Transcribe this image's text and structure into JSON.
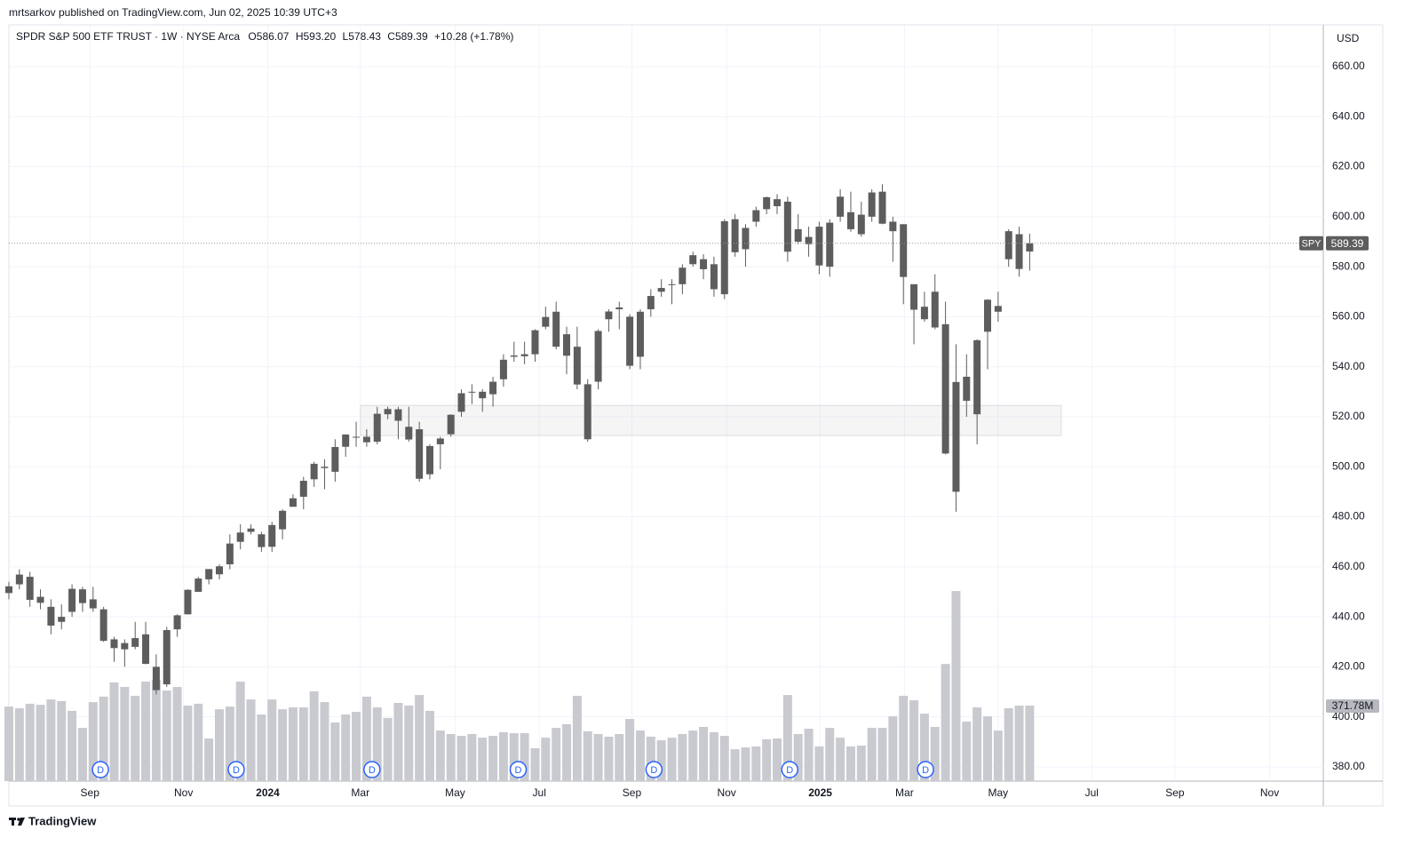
{
  "published": "mrtsarkov published on TradingView.com, Jun 02, 2025 10:39 UTC+3",
  "brand": "TradingView",
  "chart_data": {
    "type": "candlestick",
    "title": "SPDR S&P 500 ETF TRUST · 1W · NYSE Arca",
    "symbol": "SPY",
    "currency": "USD",
    "legend": {
      "o": "O",
      "h": "H",
      "l": "L",
      "c": "C",
      "high_label": "593.20",
      "change": "+10.28 (+1.78%)"
    },
    "candle_color": "#5d5d5d",
    "volume_color": "#c9cad0",
    "ohlc": [
      [
        449.5,
        454,
        447,
        452.2
      ],
      [
        453,
        459,
        451,
        456.9
      ],
      [
        456,
        458,
        444,
        446.8
      ],
      [
        448,
        451,
        443,
        445.6
      ],
      [
        444,
        447,
        433,
        436.5
      ],
      [
        438,
        445,
        435,
        440
      ],
      [
        442,
        453,
        440,
        451.2
      ],
      [
        451,
        452,
        442,
        445.5
      ],
      [
        447,
        452,
        442,
        443.4
      ],
      [
        443,
        444,
        430,
        430.4
      ],
      [
        431,
        432,
        422,
        427.5
      ],
      [
        427,
        431,
        420,
        429.5
      ],
      [
        428,
        438,
        427,
        431.5
      ],
      [
        433,
        438,
        421,
        421.2
      ],
      [
        420,
        425,
        409,
        410.7
      ],
      [
        413,
        436,
        412,
        434.7
      ],
      [
        435,
        441,
        432,
        440.6
      ],
      [
        441,
        451,
        441,
        450.8
      ],
      [
        450,
        456,
        450,
        455.3
      ],
      [
        455,
        459,
        453,
        459.1
      ],
      [
        457,
        461,
        455,
        460.2
      ],
      [
        461,
        473,
        459,
        469.3
      ],
      [
        470,
        477,
        467,
        473.7
      ],
      [
        474,
        477,
        473,
        475.3
      ],
      [
        473,
        474,
        466,
        467.9
      ],
      [
        468,
        478,
        466,
        476.7
      ],
      [
        475,
        483,
        471,
        482.4
      ],
      [
        484,
        489,
        484,
        487.4
      ],
      [
        488,
        496,
        483,
        494.4
      ],
      [
        495,
        502,
        492,
        501.2
      ],
      [
        500,
        503,
        491,
        499.5
      ],
      [
        498,
        511,
        494,
        507.9
      ],
      [
        508,
        513,
        504,
        512.9
      ],
      [
        512,
        518,
        508,
        511.7
      ],
      [
        512,
        515,
        508,
        509.8
      ],
      [
        510,
        524,
        509,
        521.2
      ],
      [
        521,
        524,
        519,
        523.1
      ],
      [
        523,
        524,
        511,
        518.4
      ],
      [
        516,
        524,
        510,
        510.9
      ],
      [
        515,
        518,
        494,
        495.2
      ],
      [
        497,
        509,
        495,
        508.3
      ],
      [
        509,
        512,
        499,
        511.3
      ],
      [
        513,
        521,
        512,
        520.8
      ],
      [
        522,
        531,
        520,
        529.4
      ],
      [
        530,
        533,
        525,
        530
      ],
      [
        530,
        531,
        522,
        527.4
      ],
      [
        529,
        536,
        524,
        534
      ],
      [
        535,
        545,
        532,
        542.8
      ],
      [
        544,
        550,
        542,
        544.5
      ],
      [
        545,
        550,
        541,
        544.2
      ],
      [
        545,
        555,
        542,
        554.6
      ],
      [
        556,
        564,
        555,
        559.9
      ],
      [
        562,
        566,
        547,
        548
      ],
      [
        553,
        556,
        537,
        544.4
      ],
      [
        548,
        556,
        531,
        532.9
      ],
      [
        511,
        535,
        510,
        533
      ],
      [
        534,
        555,
        531,
        554.3
      ],
      [
        559,
        563,
        554,
        562.1
      ],
      [
        563,
        566,
        555,
        563.7
      ],
      [
        560,
        561,
        539,
        540.4
      ],
      [
        544,
        563,
        539,
        562
      ],
      [
        563,
        571,
        560,
        568.3
      ],
      [
        570,
        575,
        568,
        571.5
      ],
      [
        573,
        575,
        565,
        572.9
      ],
      [
        573,
        581,
        569,
        579.6
      ],
      [
        581,
        586,
        580,
        584.6
      ],
      [
        583,
        585,
        575,
        579
      ],
      [
        581,
        584,
        568,
        571
      ],
      [
        569,
        599,
        567,
        598.2
      ],
      [
        599,
        601,
        584,
        585.8
      ],
      [
        587,
        597,
        580,
        595.5
      ],
      [
        598,
        604,
        596,
        602.6
      ],
      [
        603,
        608,
        601,
        607.8
      ],
      [
        607,
        609,
        601,
        604.2
      ],
      [
        606,
        608,
        582,
        586
      ],
      [
        590,
        601,
        589,
        595
      ],
      [
        589,
        596,
        584,
        591.9
      ],
      [
        596,
        598,
        577,
        580.5
      ],
      [
        580,
        599,
        576,
        597.6
      ],
      [
        600,
        611,
        598,
        608
      ],
      [
        595,
        610,
        594,
        601.8
      ],
      [
        593,
        606,
        592,
        600.8
      ],
      [
        600,
        611,
        598,
        609.7
      ],
      [
        610,
        613,
        597,
        597.2
      ],
      [
        598,
        600,
        582,
        594.2
      ],
      [
        597,
        597,
        565,
        575.9
      ],
      [
        573,
        573,
        549,
        562.8
      ],
      [
        559,
        570,
        558,
        564
      ],
      [
        570,
        577,
        555,
        555.7
      ],
      [
        557,
        566,
        505,
        505.3
      ],
      [
        490,
        549,
        482,
        533.9
      ],
      [
        536,
        545,
        520,
        526.4
      ],
      [
        521,
        551,
        509,
        550.6
      ],
      [
        554,
        567,
        539,
        566.8
      ],
      [
        562,
        570,
        558,
        564.3
      ],
      [
        583,
        595,
        580,
        594.2
      ],
      [
        593,
        596,
        576,
        579.1
      ],
      [
        586.07,
        593.2,
        578.43,
        589.39
      ]
    ],
    "volume": [
      367,
      359,
      381,
      376,
      402,
      394,
      346,
      262,
      389,
      416,
      486,
      464,
      420,
      490,
      499,
      446,
      464,
      372,
      381,
      210,
      354,
      367,
      490,
      402,
      328,
      402,
      354,
      363,
      363,
      442,
      389,
      289,
      328,
      341,
      416,
      363,
      311,
      385,
      372,
      424,
      346,
      249,
      232,
      223,
      232,
      214,
      223,
      241,
      236,
      236,
      162,
      214,
      262,
      280,
      420,
      245,
      232,
      219,
      232,
      306,
      249,
      219,
      201,
      214,
      232,
      249,
      267,
      241,
      223,
      157,
      166,
      171,
      206,
      210,
      424,
      232,
      258,
      171,
      262,
      214,
      171,
      175,
      262,
      262,
      319,
      420,
      398,
      332,
      267,
      577,
      936,
      293,
      363,
      319,
      249,
      359,
      372,
      371.78
    ],
    "volume_label": "371.78M",
    "volume_lim": [
      0,
      3723
    ],
    "xlim": [
      0,
      124.9
    ],
    "xticks": [
      {
        "value": 7.7,
        "label": "Sep"
      },
      {
        "value": 16.6,
        "label": "Nov"
      },
      {
        "value": 24.6,
        "label": "2024"
      },
      {
        "value": 33.4,
        "label": "Mar"
      },
      {
        "value": 42.4,
        "label": "May"
      },
      {
        "value": 50.4,
        "label": "Jul"
      },
      {
        "value": 59.2,
        "label": "Sep"
      },
      {
        "value": 68.2,
        "label": "Nov"
      },
      {
        "value": 77.1,
        "label": "2025"
      },
      {
        "value": 85.1,
        "label": "Mar"
      },
      {
        "value": 94.0,
        "label": "May"
      },
      {
        "value": 102.9,
        "label": "Jul"
      },
      {
        "value": 110.8,
        "label": "Sep"
      },
      {
        "value": 119.8,
        "label": "Nov"
      }
    ],
    "ylim": [
      374.3,
      676.7
    ],
    "yticks": [
      {
        "value": 380,
        "label": "380.00"
      },
      {
        "value": 400,
        "label": "400.00"
      },
      {
        "value": 420,
        "label": "420.00"
      },
      {
        "value": 440,
        "label": "440.00"
      },
      {
        "value": 460,
        "label": "460.00"
      },
      {
        "value": 480,
        "label": "480.00"
      },
      {
        "value": 500,
        "label": "500.00"
      },
      {
        "value": 520,
        "label": "520.00"
      },
      {
        "value": 540,
        "label": "540.00"
      },
      {
        "value": 560,
        "label": "560.00"
      },
      {
        "value": 580,
        "label": "580.00"
      },
      {
        "value": 600,
        "label": "600.00"
      },
      {
        "value": 620,
        "label": "620.00"
      },
      {
        "value": 640,
        "label": "640.00"
      },
      {
        "value": 660,
        "label": "660.00"
      }
    ],
    "grid": true,
    "zone": {
      "x": [
        33.4,
        100
      ],
      "y": [
        512.5,
        524.5
      ]
    },
    "dividends": {
      "label": "D",
      "x": [
        8.7,
        21.6,
        34.5,
        48.4,
        61.3,
        74.2,
        87.1
      ]
    }
  }
}
